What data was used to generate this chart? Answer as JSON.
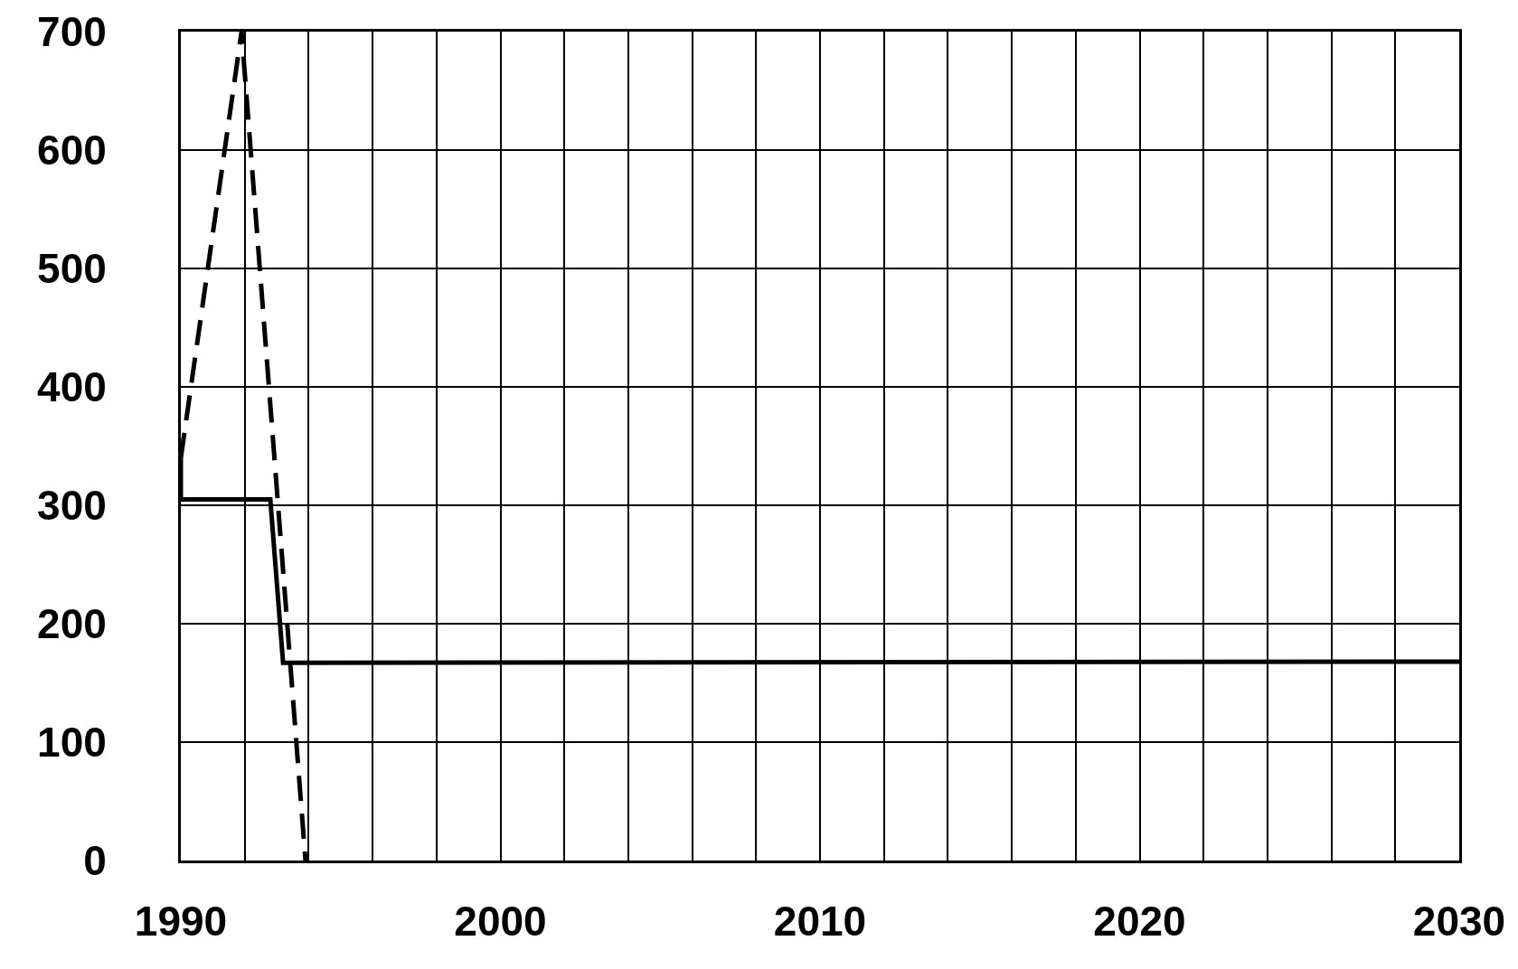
{
  "chart_data": {
    "type": "line",
    "xlim": [
      1990,
      2030
    ],
    "ylim": [
      0,
      700
    ],
    "xticks": [
      1990,
      {
        "value": 1992,
        "label": null
      },
      {
        "value": 1994,
        "label": null
      },
      {
        "value": 1996,
        "label": null
      },
      {
        "value": 1998,
        "label": null
      },
      2000,
      {
        "value": 2002,
        "label": null
      },
      {
        "value": 2004,
        "label": null
      },
      {
        "value": 2006,
        "label": null
      },
      {
        "value": 2008,
        "label": null
      },
      2010,
      {
        "value": 2012,
        "label": null
      },
      {
        "value": 2014,
        "label": null
      },
      {
        "value": 2016,
        "label": null
      },
      {
        "value": 2018,
        "label": null
      },
      2020,
      {
        "value": 2022,
        "label": null
      },
      {
        "value": 2024,
        "label": null
      },
      {
        "value": 2026,
        "label": null
      },
      {
        "value": 2028,
        "label": null
      },
      2030
    ],
    "yticks": [
      0,
      100,
      200,
      300,
      400,
      500,
      600,
      700
    ],
    "grid": true,
    "marker": "none",
    "series": [
      {
        "color": "#000000",
        "line_style": "solid",
        "x": [
          1990,
          1990,
          1992.8,
          1993.2,
          2030
        ],
        "values": [
          340,
          305,
          305,
          167,
          168
        ]
      },
      {
        "color": "#000000",
        "line_style": "dashed",
        "x": [
          1990,
          1991.9,
          1993.9
        ],
        "values": [
          340,
          700,
          0
        ]
      }
    ]
  }
}
